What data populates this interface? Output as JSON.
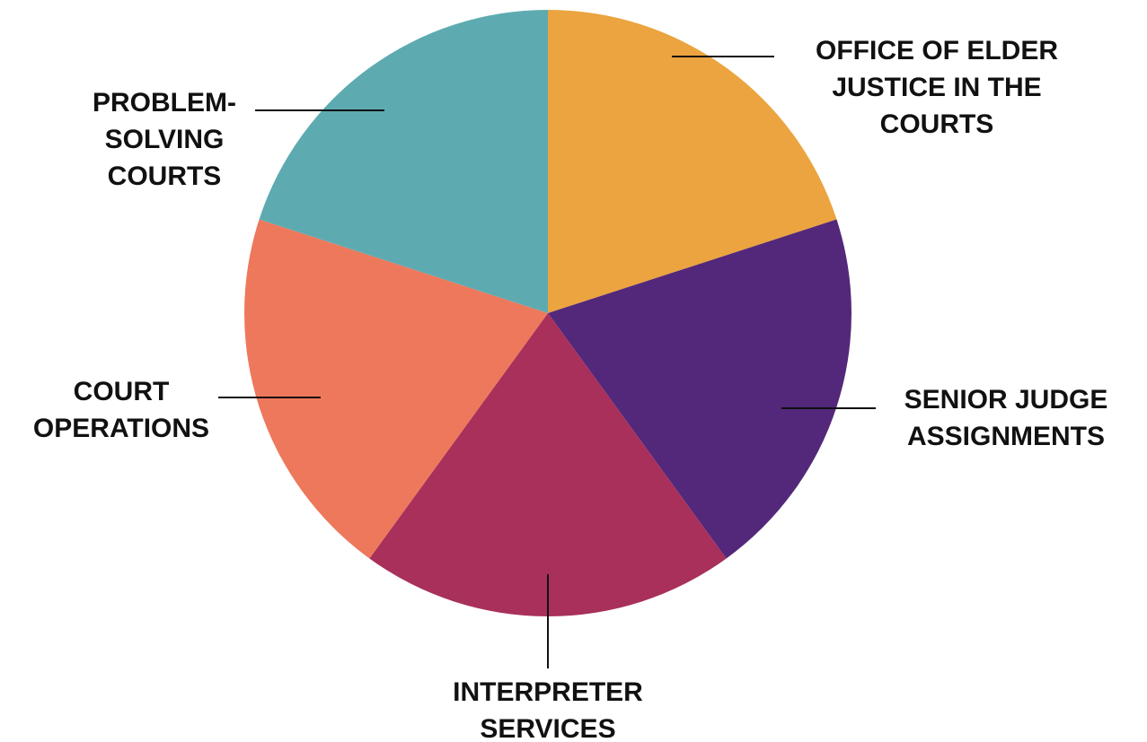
{
  "chart_data": {
    "type": "pie",
    "categories": [
      "OFFICE OF ELDER JUSTICE IN THE COURTS",
      "SENIOR JUDGE ASSIGNMENTS",
      "INTERPRETER SERVICES",
      "COURT OPERATIONS",
      "PROBLEM-SOLVING COURTS"
    ],
    "values": [
      20,
      20,
      20,
      20,
      20
    ],
    "colors": [
      "#eba43f",
      "#53287a",
      "#a8305b",
      "#ee785c",
      "#5dabb1"
    ]
  }
}
